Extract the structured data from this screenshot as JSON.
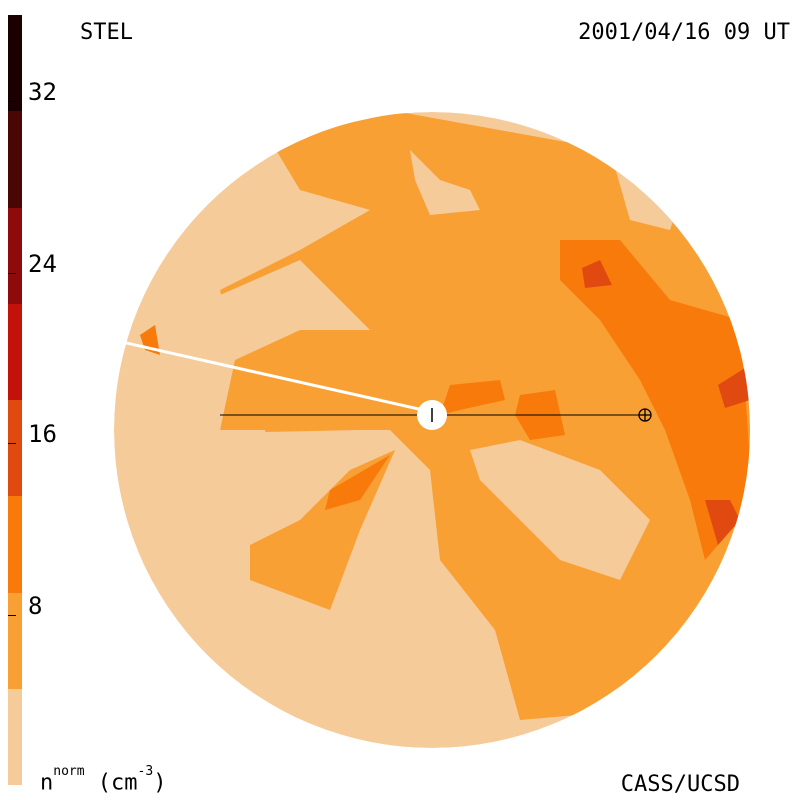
{
  "header": {
    "left": "STEL",
    "right": "2001/04/16 09 UT"
  },
  "footer": {
    "unit_base": "n",
    "unit_sup": "norm",
    "unit_rest": " (cm",
    "unit_exp": "-3",
    "unit_close": ")",
    "credit": "CASS/UCSD"
  },
  "colorbar": {
    "ticks": [
      "32",
      "24",
      "16",
      "8"
    ],
    "colors": [
      "#1a0000",
      "#4a0505",
      "#8e0b0b",
      "#c2120a",
      "#e04a10",
      "#f87a0a",
      "#f9a035",
      "#f6cb9a"
    ]
  },
  "map": {
    "markers": [
      {
        "name": "sun-marker",
        "symbol": "|"
      },
      {
        "name": "earth-marker",
        "symbol": "⊕"
      }
    ]
  }
}
